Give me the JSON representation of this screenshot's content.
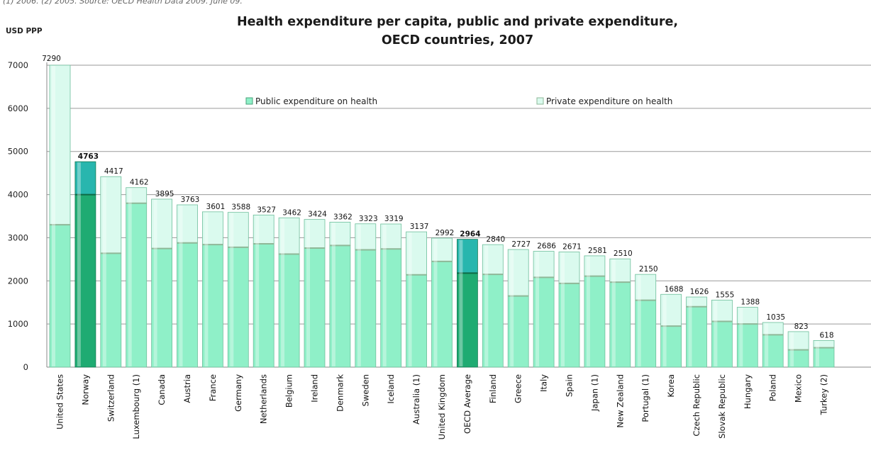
{
  "note": "(1) 2006. (2) 2005.   Source: OECD Health Data 2009. June 09.",
  "chart_data": {
    "type": "bar",
    "stacked": true,
    "title_line1": "Health expenditure per capita, public and private expenditure,",
    "title_line2": "OECD countries, 2007",
    "ylabel": "USD PPP",
    "ylim": [
      0,
      7000
    ],
    "yticks": [
      0,
      1000,
      2000,
      3000,
      4000,
      5000,
      6000,
      7000
    ],
    "grid": true,
    "legend_position": "top",
    "colors": {
      "public": "#8ff0c8",
      "private": "#dafaee",
      "public_highlight": "#1fab72",
      "private_highlight": "#28b6ae"
    },
    "highlighted": [
      "Norway",
      "OECD Average"
    ],
    "series": [
      {
        "name": "Public expenditure on health",
        "values": [
          3300,
          4000,
          2640,
          3800,
          2750,
          2880,
          2840,
          2780,
          2860,
          2620,
          2760,
          2820,
          2720,
          2740,
          2140,
          2450,
          2180,
          2150,
          1650,
          2080,
          1940,
          2110,
          1970,
          1550,
          950,
          1400,
          1060,
          1000,
          750,
          400,
          450
        ]
      },
      {
        "name": "Private expenditure on health",
        "values": [
          3990,
          763,
          1777,
          362,
          1145,
          883,
          761,
          808,
          667,
          842,
          664,
          542,
          603,
          579,
          997,
          542,
          784,
          690,
          1077,
          606,
          731,
          471,
          540,
          600,
          738,
          226,
          495,
          388,
          285,
          423,
          168
        ]
      }
    ],
    "categories": [
      "United States",
      "Norway",
      "Switzerland",
      "Luxembourg (1)",
      "Canada",
      "Austria",
      "France",
      "Germany",
      "Netherlands",
      "Belgium",
      "Ireland",
      "Denmark",
      "Sweden",
      "Iceland",
      "Australia (1)",
      "United Kingdom",
      "OECD Average",
      "Finland",
      "Greece",
      "Italy",
      "Spain",
      "Japan (1)",
      "New Zealand",
      "Portugal (1)",
      "Korea",
      "Czech Republic",
      "Slovak Republic",
      "Hungary",
      "Poland",
      "Mexico",
      "Turkey (2)"
    ],
    "totals": [
      7290,
      4763,
      4417,
      4162,
      3895,
      3763,
      3601,
      3588,
      3527,
      3462,
      3424,
      3362,
      3323,
      3319,
      3137,
      2992,
      2964,
      2840,
      2727,
      2686,
      2671,
      2581,
      2510,
      2150,
      1688,
      1626,
      1555,
      1388,
      1035,
      823,
      618
    ]
  }
}
